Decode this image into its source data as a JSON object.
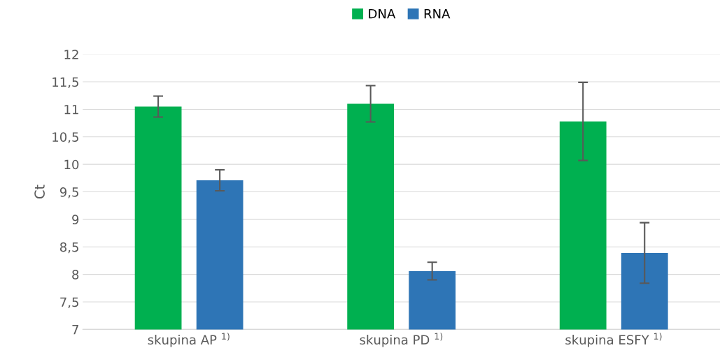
{
  "chart_data": {
    "type": "bar",
    "ylabel": "Ct",
    "categories": [
      "skupina AP $^{1)}$",
      "skupina PD $^{1)}$",
      "skupina ESFY $^{1)}$"
    ],
    "series": [
      {
        "name": "DNA",
        "color": "#00b050",
        "values": [
          11.05,
          11.1,
          10.78
        ],
        "errors": [
          0.19,
          0.33,
          0.71
        ]
      },
      {
        "name": "RNA",
        "color": "#2e75b6",
        "values": [
          9.71,
          8.06,
          8.39
        ],
        "errors": [
          0.19,
          0.16,
          0.55
        ]
      }
    ],
    "ylim": [
      7,
      12
    ],
    "yticks": [
      7,
      {
        "value": 7.5,
        "label": "7,5"
      },
      8,
      {
        "value": 8.5,
        "label": "8,5"
      },
      9,
      {
        "value": 9.5,
        "label": "9,5"
      },
      10,
      {
        "value": 10.5,
        "label": "10,5"
      },
      11,
      {
        "value": 11.5,
        "label": "11,5"
      },
      12
    ],
    "grid": "y",
    "legend": "top"
  }
}
